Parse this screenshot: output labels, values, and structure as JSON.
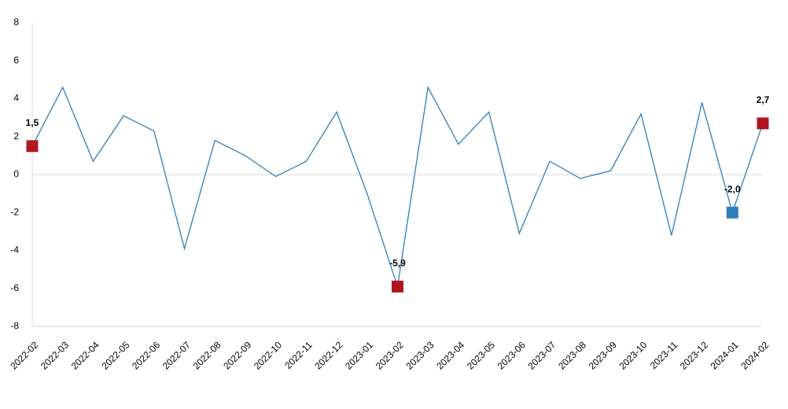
{
  "chart_data": {
    "type": "line",
    "categories": [
      "2022-02",
      "2022-03",
      "2022-04",
      "2022-05",
      "2022-06",
      "2022-07",
      "2022-08",
      "2022-09",
      "2022-10",
      "2022-11",
      "2022-12",
      "2023-01",
      "2023-02",
      "2023-03",
      "2023-04",
      "2023-05",
      "2023-06",
      "2023-07",
      "2023-08",
      "2023-09",
      "2023-10",
      "2023-11",
      "2023-12",
      "2024-01",
      "2024-02"
    ],
    "values": [
      1.5,
      4.6,
      0.7,
      3.1,
      2.3,
      -3.9,
      1.8,
      1.0,
      -0.1,
      0.7,
      3.3,
      -1.0,
      -5.9,
      4.6,
      1.6,
      3.3,
      -3.1,
      0.7,
      -0.2,
      0.2,
      3.2,
      -3.2,
      3.8,
      -2.0,
      2.7
    ],
    "value_labels": [
      "1,5",
      null,
      null,
      null,
      null,
      null,
      null,
      null,
      null,
      null,
      null,
      null,
      "-5,9",
      null,
      null,
      null,
      null,
      null,
      null,
      null,
      null,
      null,
      null,
      "-2,0",
      "2,7"
    ],
    "marker_colors": [
      "#b0161e",
      null,
      null,
      null,
      null,
      null,
      null,
      null,
      null,
      null,
      null,
      null,
      "#b0161e",
      null,
      null,
      null,
      null,
      null,
      null,
      null,
      null,
      null,
      null,
      "#2e7ebd",
      "#b0161e"
    ],
    "color": "#2e7ebd",
    "ylim": [
      -8,
      8
    ],
    "yticks": [
      -8,
      -6,
      -4,
      -2,
      0,
      2,
      4,
      6,
      8
    ],
    "grid": false
  }
}
